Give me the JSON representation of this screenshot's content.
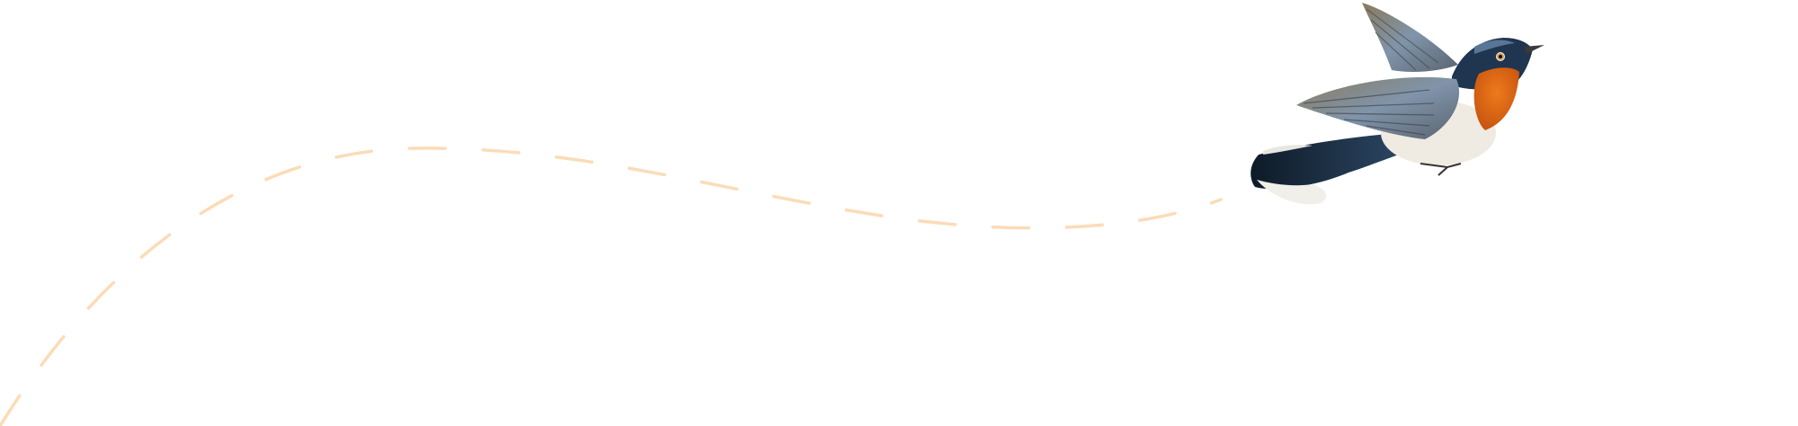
{
  "scene": {
    "illustration": "bird-illustration",
    "trail": "dashed-flight-path"
  },
  "colors": {
    "background": "#ffffff",
    "trail": "#fbdcb8",
    "bird_head": "#1f3550",
    "bird_throat": "#e0661a",
    "bird_belly": "#efebe3",
    "bird_wing": "#7d828a",
    "bird_tail": "#142233"
  }
}
